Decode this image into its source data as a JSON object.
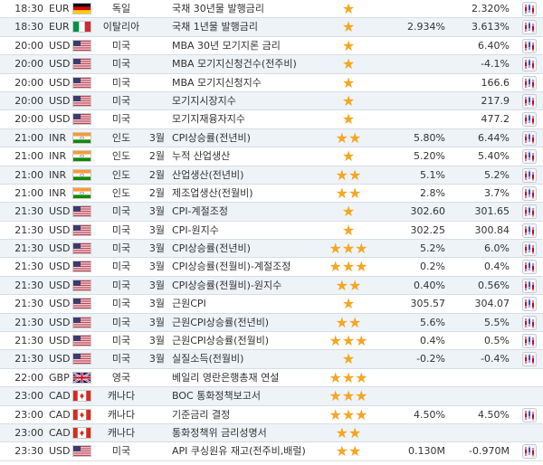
{
  "rows": [
    {
      "time": "18:30",
      "currency": "EUR",
      "flag": "de",
      "country": "독일",
      "period": "",
      "event": "국채 30년물 발행금리",
      "stars": "★",
      "previous": "",
      "forecast": "2.320%",
      "icon": "chart-icon"
    },
    {
      "time": "18:30",
      "currency": "EUR",
      "flag": "it",
      "country": "이탈리아",
      "period": "",
      "event": "국채 1년물 발행금리",
      "stars": "★",
      "previous": "2.934%",
      "forecast": "3.613%",
      "icon": "chart-icon"
    },
    {
      "time": "20:00",
      "currency": "USD",
      "flag": "us",
      "country": "미국",
      "period": "",
      "event": "MBA 30년 모기지론 금리",
      "stars": "★",
      "previous": "",
      "forecast": "6.40%",
      "icon": "chart-icon"
    },
    {
      "time": "20:00",
      "currency": "USD",
      "flag": "us",
      "country": "미국",
      "period": "",
      "event": "MBA 모기지신청건수(전주비)",
      "stars": "★",
      "previous": "",
      "forecast": "-4.1%",
      "icon": "chart-icon"
    },
    {
      "time": "20:00",
      "currency": "USD",
      "flag": "us",
      "country": "미국",
      "period": "",
      "event": "MBA 모기지신청지수",
      "stars": "★",
      "previous": "",
      "forecast": "166.6",
      "icon": "chart-icon"
    },
    {
      "time": "20:00",
      "currency": "USD",
      "flag": "us",
      "country": "미국",
      "period": "",
      "event": "모기지시장지수",
      "stars": "★",
      "previous": "",
      "forecast": "217.9",
      "icon": "chart-icon"
    },
    {
      "time": "20:00",
      "currency": "USD",
      "flag": "us",
      "country": "미국",
      "period": "",
      "event": "모기지재융자지수",
      "stars": "★",
      "previous": "",
      "forecast": "477.2",
      "icon": "chart-icon"
    },
    {
      "time": "21:00",
      "currency": "INR",
      "flag": "in",
      "country": "인도",
      "period": "3월",
      "event": "CPI상승률(전년비)",
      "stars": "★★",
      "previous": "5.80%",
      "forecast": "6.44%",
      "icon": "chart-icon"
    },
    {
      "time": "21:00",
      "currency": "INR",
      "flag": "in",
      "country": "인도",
      "period": "2월",
      "event": "누적 산업생산",
      "stars": "★",
      "previous": "5.20%",
      "forecast": "5.40%",
      "icon": "chart-icon"
    },
    {
      "time": "21:00",
      "currency": "INR",
      "flag": "in",
      "country": "인도",
      "period": "2월",
      "event": "산업생산(전년비)",
      "stars": "★★",
      "previous": "5.1%",
      "forecast": "5.2%",
      "icon": "chart-icon"
    },
    {
      "time": "21:00",
      "currency": "INR",
      "flag": "in",
      "country": "인도",
      "period": "2월",
      "event": "제조업생산(전월비)",
      "stars": "★★",
      "previous": "2.8%",
      "forecast": "3.7%",
      "icon": "chart-icon"
    },
    {
      "time": "21:30",
      "currency": "USD",
      "flag": "us",
      "country": "미국",
      "period": "3월",
      "event": "CPI-계절조정",
      "stars": "★",
      "previous": "302.60",
      "forecast": "301.65",
      "icon": "chart-icon"
    },
    {
      "time": "21:30",
      "currency": "USD",
      "flag": "us",
      "country": "미국",
      "period": "3월",
      "event": "CPI-원지수",
      "stars": "★",
      "previous": "302.25",
      "forecast": "300.84",
      "icon": "chart-icon"
    },
    {
      "time": "21:30",
      "currency": "USD",
      "flag": "us",
      "country": "미국",
      "period": "3월",
      "event": "CPI상승률(전년비)",
      "stars": "★★★",
      "previous": "5.2%",
      "forecast": "6.0%",
      "icon": "chart-icon"
    },
    {
      "time": "21:30",
      "currency": "USD",
      "flag": "us",
      "country": "미국",
      "period": "3월",
      "event": "CPI상승률(전월비)-계절조정",
      "stars": "★★★",
      "previous": "0.2%",
      "forecast": "0.4%",
      "icon": "chart-icon"
    },
    {
      "time": "21:30",
      "currency": "USD",
      "flag": "us",
      "country": "미국",
      "period": "3월",
      "event": "CPI상승률(전월비)-원지수",
      "stars": "★★",
      "previous": "0.40%",
      "forecast": "0.56%",
      "icon": "chart-icon"
    },
    {
      "time": "21:30",
      "currency": "USD",
      "flag": "us",
      "country": "미국",
      "period": "3월",
      "event": "근원CPI",
      "stars": "★",
      "previous": "305.57",
      "forecast": "304.07",
      "icon": "chart-icon"
    },
    {
      "time": "21:30",
      "currency": "USD",
      "flag": "us",
      "country": "미국",
      "period": "3월",
      "event": "근원CPI상승률(전년비)",
      "stars": "★★",
      "previous": "5.6%",
      "forecast": "5.5%",
      "icon": "chart-icon"
    },
    {
      "time": "21:30",
      "currency": "USD",
      "flag": "us",
      "country": "미국",
      "period": "3월",
      "event": "근원CPI상승률(전월비)",
      "stars": "★★★",
      "previous": "0.4%",
      "forecast": "0.5%",
      "icon": "chart-icon"
    },
    {
      "time": "21:30",
      "currency": "USD",
      "flag": "us",
      "country": "미국",
      "period": "3월",
      "event": "실질소득(전월비)",
      "stars": "★",
      "previous": "-0.2%",
      "forecast": "-0.4%",
      "icon": "chart-icon"
    },
    {
      "time": "22:00",
      "currency": "GBP",
      "flag": "gb",
      "country": "영국",
      "period": "",
      "event": "베일리 영란은행총재 연설",
      "stars": "★★★",
      "previous": "",
      "forecast": "",
      "icon": ""
    },
    {
      "time": "23:00",
      "currency": "CAD",
      "flag": "ca",
      "country": "캐나다",
      "period": "",
      "event": "BOC 통화정책보고서",
      "stars": "★★★",
      "previous": "",
      "forecast": "",
      "icon": ""
    },
    {
      "time": "23:00",
      "currency": "CAD",
      "flag": "ca",
      "country": "캐나다",
      "period": "",
      "event": "기준금리 결정",
      "stars": "★★★",
      "previous": "4.50%",
      "forecast": "4.50%",
      "icon": "chart-icon"
    },
    {
      "time": "23:00",
      "currency": "CAD",
      "flag": "ca",
      "country": "캐나다",
      "period": "",
      "event": "통화정책위 금리성명서",
      "stars": "★★",
      "previous": "",
      "forecast": "",
      "icon": ""
    },
    {
      "time": "23:30",
      "currency": "USD",
      "flag": "us",
      "country": "미국",
      "period": "",
      "event": "API 쿠싱원유 재고(전주비,배럴)",
      "stars": "★★",
      "previous": "0.130M",
      "forecast": "-0.970M",
      "icon": "chart-icon"
    }
  ]
}
